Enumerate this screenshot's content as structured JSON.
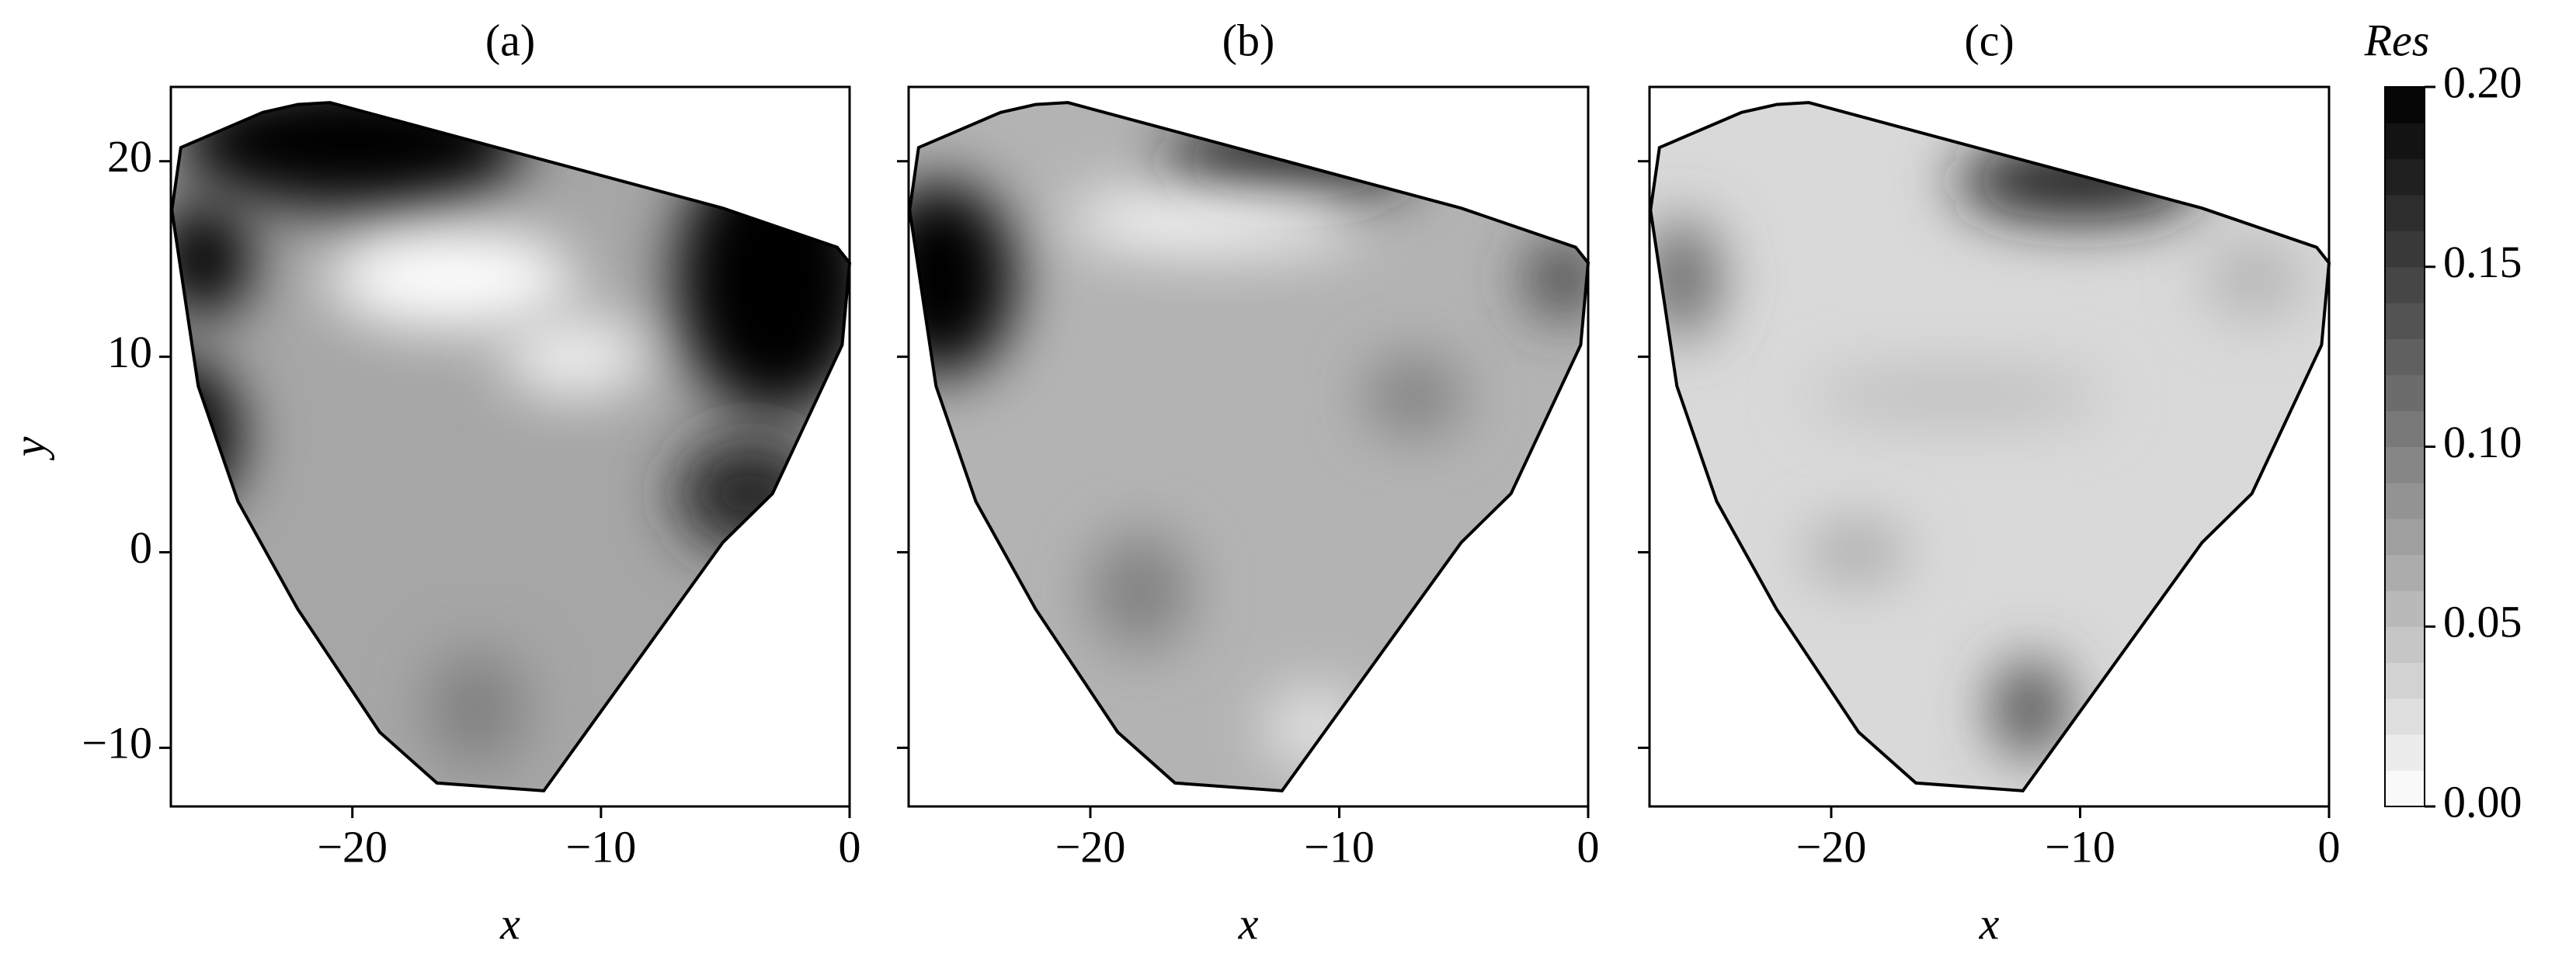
{
  "chart_data": [
    {
      "type": "contour",
      "title": "(a)",
      "xlabel": "x",
      "ylabel": "y",
      "yticklabels": true,
      "xlim": [
        -27.3,
        0
      ],
      "ylim": [
        -13,
        23.8
      ],
      "xticks": [
        {
          "value": -20,
          "label": "−20"
        },
        {
          "value": -10,
          "label": "−10"
        },
        0
      ],
      "yticks": [
        {
          "value": -10,
          "label": "−10"
        },
        0,
        10,
        20
      ],
      "boundary": {
        "x": [
          -27.26,
          -26.9,
          -23.6,
          -22.2,
          -20.9,
          -5.1,
          -0.5,
          0,
          -0.3,
          -3.1,
          -5.1,
          -12.3,
          -16.6,
          -18.9,
          -22.2,
          -24.6,
          -26.2
        ],
        "y": [
          17.5,
          20.7,
          22.5,
          22.9,
          23.0,
          17.6,
          15.6,
          14.8,
          10.6,
          3.0,
          0.5,
          -12.2,
          -11.8,
          -9.2,
          -2.9,
          2.6,
          8.5
        ]
      },
      "base": 0.07,
      "blobs": [
        {
          "x": -20,
          "y": 21,
          "rx": 7,
          "ry": 3.5,
          "value": 0.2
        },
        {
          "x": -3,
          "y": 14,
          "rx": 4,
          "ry": 7,
          "value": 0.2
        },
        {
          "x": -27,
          "y": 6,
          "rx": 2.5,
          "ry": 4,
          "value": 0.2
        },
        {
          "x": -26,
          "y": 15,
          "rx": 2,
          "ry": 3,
          "value": 0.2
        },
        {
          "x": -16,
          "y": 14,
          "rx": 5,
          "ry": 2.5,
          "value": 0.0
        },
        {
          "x": -11,
          "y": 10,
          "rx": 3,
          "ry": 2,
          "value": 0.01
        },
        {
          "x": -4,
          "y": 3,
          "rx": 3,
          "ry": 3,
          "value": 0.17
        },
        {
          "x": -15,
          "y": -8,
          "rx": 2,
          "ry": 3,
          "value": 0.1
        }
      ]
    },
    {
      "type": "contour",
      "title": "(b)",
      "xlabel": "x",
      "yticklabels": false,
      "xlim": [
        -27.3,
        0
      ],
      "ylim": [
        -13,
        23.8
      ],
      "xticks": [
        {
          "value": -20,
          "label": "−20"
        },
        {
          "value": -10,
          "label": "−10"
        },
        0
      ],
      "yticks": [
        -10,
        0,
        10,
        20
      ],
      "boundary": {
        "x": [
          -27.26,
          -26.9,
          -23.6,
          -22.2,
          -20.9,
          -5.1,
          -0.5,
          0,
          -0.3,
          -3.1,
          -5.1,
          -12.3,
          -16.6,
          -18.9,
          -22.2,
          -24.6,
          -26.2
        ],
        "y": [
          17.5,
          20.7,
          22.5,
          22.9,
          23.0,
          17.6,
          15.6,
          14.8,
          10.6,
          3.0,
          0.5,
          -12.2,
          -11.8,
          -9.2,
          -2.9,
          2.6,
          8.5
        ]
      },
      "base": 0.06,
      "blobs": [
        {
          "x": -26,
          "y": 14,
          "rx": 3,
          "ry": 5,
          "value": 0.2
        },
        {
          "x": -12,
          "y": 20,
          "rx": 5,
          "ry": 2,
          "value": 0.18
        },
        {
          "x": -1,
          "y": 14,
          "rx": 1.5,
          "ry": 2,
          "value": 0.15
        },
        {
          "x": -7,
          "y": 8,
          "rx": 2,
          "ry": 2,
          "value": 0.1
        },
        {
          "x": -18,
          "y": -2,
          "rx": 2,
          "ry": 3,
          "value": 0.1
        },
        {
          "x": -15,
          "y": 17,
          "rx": 6,
          "ry": 1.5,
          "value": 0.0
        },
        {
          "x": -11,
          "y": -9,
          "rx": 2,
          "ry": 2,
          "value": 0.02
        }
      ]
    },
    {
      "type": "contour",
      "title": "(c)",
      "xlabel": "x",
      "yticklabels": false,
      "xlim": [
        -27.3,
        0
      ],
      "ylim": [
        -13,
        23.8
      ],
      "xticks": [
        {
          "value": -20,
          "label": "−20"
        },
        {
          "value": -10,
          "label": "−10"
        },
        0
      ],
      "yticks": [
        -10,
        0,
        10,
        20
      ],
      "boundary": {
        "x": [
          -27.26,
          -26.9,
          -23.6,
          -22.2,
          -20.9,
          -5.1,
          -0.5,
          0,
          -0.3,
          -3.1,
          -5.1,
          -12.3,
          -16.6,
          -18.9,
          -22.2,
          -24.6,
          -26.2
        ],
        "y": [
          17.5,
          20.7,
          22.5,
          22.9,
          23.0,
          17.6,
          15.6,
          14.8,
          10.6,
          3.0,
          0.5,
          -12.2,
          -11.8,
          -9.2,
          -2.9,
          2.6,
          8.5
        ]
      },
      "base": 0.03,
      "blobs": [
        {
          "x": -10,
          "y": 19,
          "rx": 5,
          "ry": 2,
          "value": 0.18
        },
        {
          "x": -26,
          "y": 14,
          "rx": 1.5,
          "ry": 3,
          "value": 0.12
        },
        {
          "x": -12,
          "y": -8,
          "rx": 1.5,
          "ry": 2.5,
          "value": 0.14
        },
        {
          "x": -19,
          "y": 0,
          "rx": 2,
          "ry": 1.5,
          "value": 0.07
        },
        {
          "x": -15,
          "y": 8,
          "rx": 6,
          "ry": 1.5,
          "value": 0.05
        },
        {
          "x": -3,
          "y": 14,
          "rx": 2,
          "ry": 2,
          "value": 0.06
        }
      ]
    },
    {
      "type": "colorbar",
      "label": "Res",
      "vlim": [
        0,
        0.2
      ],
      "levels": 20,
      "ticks": [
        {
          "value": 0,
          "label": "0.00"
        },
        {
          "value": 0.05,
          "label": "0.05"
        },
        {
          "value": 0.1,
          "label": "0.10"
        },
        {
          "value": 0.15,
          "label": "0.15"
        },
        {
          "value": 0.2,
          "label": "0.20"
        }
      ]
    }
  ]
}
